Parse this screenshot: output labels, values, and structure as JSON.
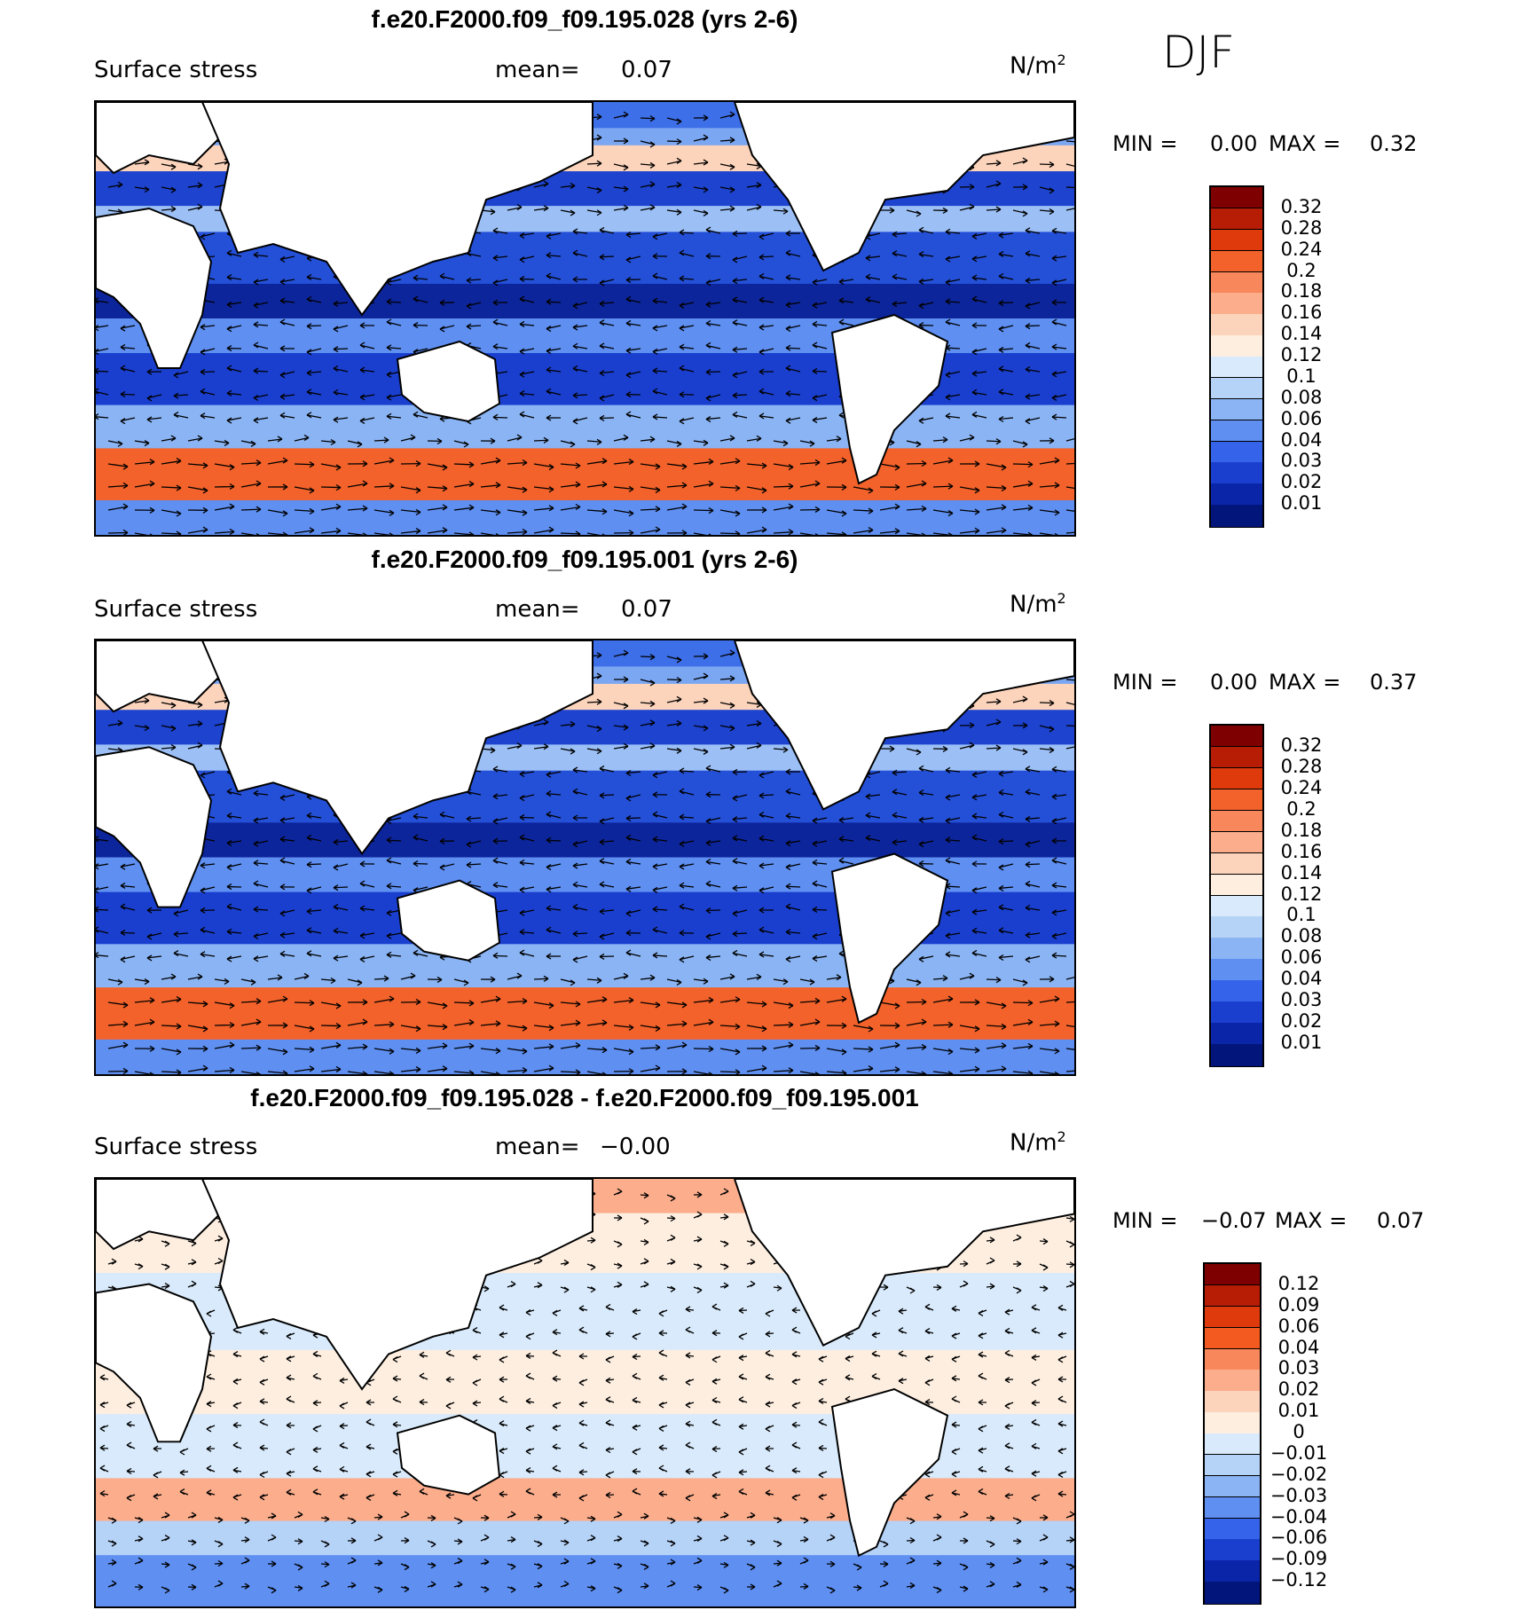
{
  "season": "DJF",
  "panels": [
    {
      "title": "f.e20.F2000.f09_f09.195.028 (yrs 2-6)",
      "variable": "Surface stress",
      "mean_label": "mean=",
      "mean_value": "0.07",
      "units_base": "N/m",
      "units_exp": "2",
      "min_label": "MIN =",
      "min_value": "0.00",
      "max_label": "MAX =",
      "max_value": "0.32",
      "colorbar": {
        "labels": [
          "0.32",
          "0.28",
          "0.24",
          "0.2",
          "0.18",
          "0.16",
          "0.14",
          "0.12",
          "0.1",
          "0.08",
          "0.06",
          "0.04",
          "0.03",
          "0.02",
          "0.01"
        ],
        "colors": [
          "#7f0000",
          "#b71c05",
          "#de3a0c",
          "#f2622a",
          "#f8875b",
          "#fbad8c",
          "#fcd3bb",
          "#fdeee0",
          "#d8eafb",
          "#b5d2f7",
          "#8ab4f3",
          "#5e8ff1",
          "#3564ea",
          "#1a3fcf",
          "#0b25a8",
          "#02157a"
        ]
      },
      "map_theme": "mean"
    },
    {
      "title": "f.e20.F2000.f09_f09.195.001 (yrs 2-6)",
      "variable": "Surface stress",
      "mean_label": "mean=",
      "mean_value": "0.07",
      "units_base": "N/m",
      "units_exp": "2",
      "min_label": "MIN =",
      "min_value": "0.00",
      "max_label": "MAX =",
      "max_value": "0.37",
      "colorbar": {
        "labels": [
          "0.32",
          "0.28",
          "0.24",
          "0.2",
          "0.18",
          "0.16",
          "0.14",
          "0.12",
          "0.1",
          "0.08",
          "0.06",
          "0.04",
          "0.03",
          "0.02",
          "0.01"
        ],
        "colors": [
          "#7f0000",
          "#b71c05",
          "#de3a0c",
          "#f2622a",
          "#f8875b",
          "#fbad8c",
          "#fcd3bb",
          "#fdeee0",
          "#d8eafb",
          "#b5d2f7",
          "#8ab4f3",
          "#5e8ff1",
          "#3564ea",
          "#1a3fcf",
          "#0b25a8",
          "#02157a"
        ]
      },
      "map_theme": "mean"
    },
    {
      "title": "f.e20.F2000.f09_f09.195.028 - f.e20.F2000.f09_f09.195.001",
      "variable": "Surface stress",
      "mean_label": "mean=",
      "mean_value": "−0.00",
      "units_base": "N/m",
      "units_exp": "2",
      "min_label": "MIN =",
      "min_value": "−0.07",
      "max_label": "MAX =",
      "max_value": "0.07",
      "colorbar": {
        "labels": [
          "0.12",
          "0.09",
          "0.06",
          "0.04",
          "0.03",
          "0.02",
          "0.01",
          "0",
          "−0.01",
          "−0.02",
          "−0.03",
          "−0.04",
          "−0.06",
          "−0.09",
          "−0.12"
        ],
        "colors": [
          "#7f0000",
          "#b71c05",
          "#de3a0c",
          "#f25a1f",
          "#f8875b",
          "#fbad8c",
          "#fcd3bb",
          "#fdeee0",
          "#d8eafb",
          "#b5d2f7",
          "#8ab4f3",
          "#5e8ff1",
          "#3564ea",
          "#1a3fcf",
          "#0b25a8",
          "#02157a"
        ]
      },
      "map_theme": "diff"
    }
  ]
}
